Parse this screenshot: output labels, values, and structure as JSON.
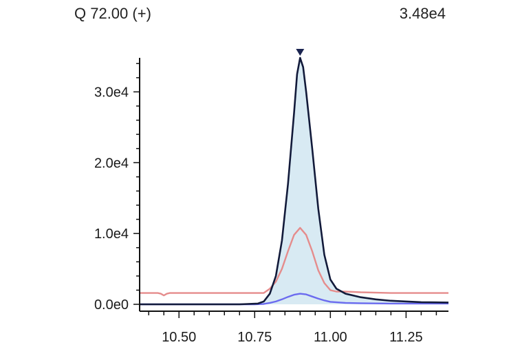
{
  "header": {
    "ion_label": "Q 72.00 (+)",
    "max_label": "3.48e4"
  },
  "colors": {
    "main_trace": "#121a3a",
    "fill": "#d8eaf3",
    "secondary_trace": "#e58c8c",
    "tertiary_trace": "#6b6bef",
    "peak_marker": "#1a2450",
    "axis": "#111111"
  },
  "chart_data": {
    "type": "line",
    "title": "",
    "xlabel": "",
    "ylabel": "",
    "xlim": [
      10.37,
      11.39
    ],
    "ylim": [
      0,
      35000
    ],
    "x_ticks": [
      10.5,
      10.75,
      11.0,
      11.25
    ],
    "x_tick_labels": [
      "10.50",
      "10.75",
      "11.00",
      "11.25"
    ],
    "y_ticks": [
      0,
      10000,
      20000,
      30000
    ],
    "y_tick_labels": [
      "0.0e0",
      "1.0e4",
      "2.0e4",
      "3.0e4"
    ],
    "peak": {
      "x": 10.9,
      "y": 34800,
      "marker": "triangle-down"
    },
    "series": [
      {
        "name": "",
        "role": "main",
        "filled": true,
        "x": [
          10.37,
          10.7,
          10.76,
          10.78,
          10.8,
          10.82,
          10.84,
          10.86,
          10.88,
          10.89,
          10.9,
          10.91,
          10.92,
          10.94,
          10.96,
          10.98,
          11.0,
          11.02,
          11.05,
          11.1,
          11.15,
          11.2,
          11.3,
          11.39
        ],
        "y": [
          0,
          0,
          100,
          400,
          1500,
          4000,
          9000,
          17000,
          27000,
          32500,
          34800,
          33500,
          30000,
          22000,
          13500,
          7000,
          3500,
          2200,
          1500,
          1000,
          700,
          500,
          300,
          250
        ]
      },
      {
        "name": "",
        "role": "qualifier-1",
        "filled": false,
        "x": [
          10.37,
          10.43,
          10.44,
          10.45,
          10.46,
          10.47,
          10.6,
          10.78,
          10.8,
          10.82,
          10.84,
          10.86,
          10.88,
          10.9,
          10.92,
          10.94,
          10.96,
          10.98,
          11.0,
          11.02,
          11.05,
          11.1,
          11.2,
          11.39
        ],
        "y": [
          1600,
          1600,
          1500,
          1250,
          1500,
          1600,
          1600,
          1600,
          2200,
          3200,
          5000,
          7500,
          9800,
          10800,
          9800,
          7500,
          4800,
          3000,
          2000,
          1800,
          1800,
          1700,
          1600,
          1600
        ]
      },
      {
        "name": "",
        "role": "qualifier-2",
        "filled": false,
        "x": [
          10.37,
          10.75,
          10.78,
          10.8,
          10.82,
          10.84,
          10.86,
          10.88,
          10.9,
          10.92,
          10.94,
          10.96,
          10.98,
          11.0,
          11.05,
          11.1,
          11.2,
          11.39
        ],
        "y": [
          0,
          0,
          50,
          200,
          400,
          700,
          1050,
          1350,
          1500,
          1400,
          1100,
          800,
          550,
          350,
          200,
          150,
          100,
          100
        ]
      }
    ],
    "grid": false,
    "legend": "none"
  }
}
